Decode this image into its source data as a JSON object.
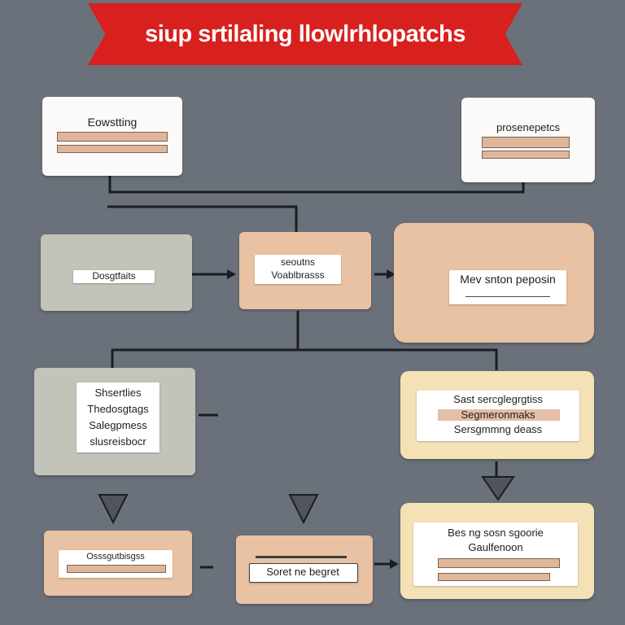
{
  "title": "siup srtilaling llowlrhlopatchs",
  "nodes": {
    "top_left": "Eowstting",
    "top_right": "prosenepetcs",
    "mid_left": "Dosgtfaits",
    "mid_center": [
      "seoutns",
      "Voablbrasss"
    ],
    "mid_right": "Mev snton peposin",
    "lower_left": [
      "Shsertlies",
      "Thedosgtags",
      "Salegpmess",
      "slusreisbocr"
    ],
    "lower_right": [
      "Sast sercglegrgtiss",
      "Segmeronmaks",
      "Sersgmmng deass"
    ],
    "bottom_left": "Osssgutbisgss",
    "bottom_center": "Soret ne begret",
    "bottom_right": [
      "Bes ng sosn sgoorie",
      "Gaulfenoon"
    ]
  },
  "colors": {
    "background": "#6b717b",
    "banner": "#d8201e",
    "white": "#fbfaf8",
    "grey": "#c2c3b9",
    "peach": "#e8c2a2",
    "yellow": "#f4e2b6",
    "wire": "#1a1d22"
  }
}
